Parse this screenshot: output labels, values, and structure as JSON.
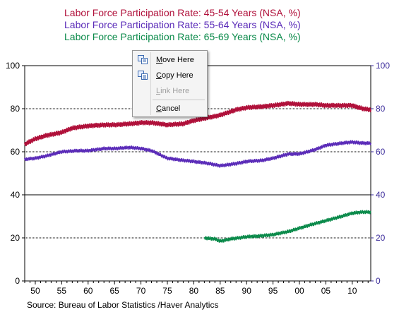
{
  "colors": {
    "s1": "#b0103a",
    "s2": "#5a2bb8",
    "s3": "#0a8a4a",
    "axis_left": "#000000",
    "axis_right": "#3a2a9a"
  },
  "context_menu": {
    "items": [
      {
        "label": "Move Here",
        "icon": "move-icon",
        "enabled": true
      },
      {
        "label": "Copy Here",
        "icon": "copy-icon",
        "enabled": true
      },
      {
        "label": "Link Here",
        "icon": "",
        "enabled": false
      },
      {
        "label": "Cancel",
        "icon": "",
        "enabled": true
      }
    ]
  },
  "chart_data": {
    "type": "line",
    "titles": [
      "Labor Force Participation Rate: 45-54 Years (NSA, %)",
      "Labor Force Participation Rate: 55-64 Years (NSA, %)",
      "Labor Force Participation Rate: 65-69 Years (NSA, %)"
    ],
    "xlim": [
      1948,
      2013.5
    ],
    "ylim": [
      0,
      100
    ],
    "x_ticks": [
      1950,
      1955,
      1960,
      1965,
      1970,
      1975,
      1980,
      1985,
      1990,
      1995,
      2000,
      2005,
      2010
    ],
    "x_tick_labels": [
      "50",
      "55",
      "60",
      "65",
      "70",
      "75",
      "80",
      "85",
      "90",
      "95",
      "00",
      "05",
      "10"
    ],
    "y_ticks": [
      0,
      20,
      40,
      60,
      80,
      100
    ],
    "y_tick_labels": [
      "0",
      "20",
      "40",
      "60",
      "80",
      "100"
    ],
    "right_axis": {
      "ylim": [
        0,
        100
      ],
      "y_tick_labels": [
        "0",
        "20",
        "40",
        "60",
        "80",
        "100"
      ]
    },
    "grid": "horizontal dotted at 20, 60, 80; solid at 40",
    "source": "Source:  Bureau of Labor Statistics /Haver Analytics",
    "series": [
      {
        "color": "#b0103a",
        "points": [
          [
            1948,
            63.5
          ],
          [
            1950,
            66
          ],
          [
            1952,
            67.5
          ],
          [
            1955,
            69
          ],
          [
            1957,
            71
          ],
          [
            1960,
            72
          ],
          [
            1963,
            72.5
          ],
          [
            1965,
            72.5
          ],
          [
            1968,
            73
          ],
          [
            1970,
            73.5
          ],
          [
            1972,
            73.5
          ],
          [
            1975,
            72.5
          ],
          [
            1978,
            73
          ],
          [
            1980,
            74.5
          ],
          [
            1982,
            75.5
          ],
          [
            1985,
            77
          ],
          [
            1988,
            79.5
          ],
          [
            1990,
            80.5
          ],
          [
            1993,
            81
          ],
          [
            1995,
            81.5
          ],
          [
            1998,
            82.5
          ],
          [
            2000,
            82
          ],
          [
            2003,
            82
          ],
          [
            2005,
            81.5
          ],
          [
            2008,
            81.5
          ],
          [
            2010,
            81.5
          ],
          [
            2012,
            80
          ],
          [
            2013.5,
            79.5
          ]
        ]
      },
      {
        "color": "#5a2bb8",
        "points": [
          [
            1948,
            56.5
          ],
          [
            1950,
            57
          ],
          [
            1952,
            58
          ],
          [
            1955,
            60
          ],
          [
            1958,
            60.5
          ],
          [
            1960,
            60.5
          ],
          [
            1963,
            61.5
          ],
          [
            1965,
            61.5
          ],
          [
            1968,
            62
          ],
          [
            1970,
            61.5
          ],
          [
            1972,
            60.5
          ],
          [
            1975,
            57
          ],
          [
            1978,
            56
          ],
          [
            1980,
            55.5
          ],
          [
            1983,
            54.5
          ],
          [
            1985,
            53.5
          ],
          [
            1988,
            54.5
          ],
          [
            1990,
            55.5
          ],
          [
            1993,
            56
          ],
          [
            1995,
            57
          ],
          [
            1998,
            59
          ],
          [
            2000,
            59
          ],
          [
            2003,
            61
          ],
          [
            2005,
            63
          ],
          [
            2008,
            64
          ],
          [
            2010,
            64.5
          ],
          [
            2012,
            64
          ],
          [
            2013.5,
            64
          ]
        ]
      },
      {
        "color": "#0a8a4a",
        "points": [
          [
            1982,
            20
          ],
          [
            1984,
            19.5
          ],
          [
            1985,
            18.5
          ],
          [
            1987,
            19.5
          ],
          [
            1990,
            20.5
          ],
          [
            1993,
            21
          ],
          [
            1995,
            21.5
          ],
          [
            1998,
            23
          ],
          [
            2000,
            24.5
          ],
          [
            2002,
            26
          ],
          [
            2005,
            28
          ],
          [
            2008,
            30
          ],
          [
            2010,
            31.5
          ],
          [
            2012,
            32
          ],
          [
            2013.5,
            32
          ]
        ]
      }
    ]
  }
}
